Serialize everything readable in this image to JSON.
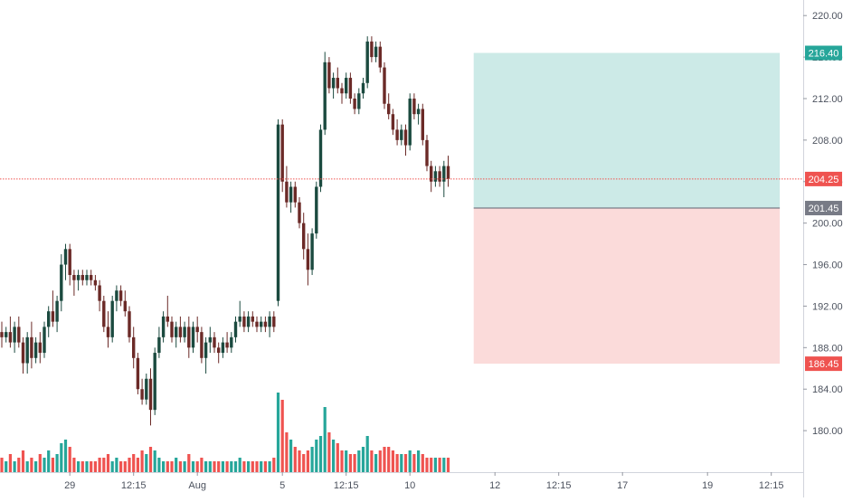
{
  "chart_data": {
    "type": "candlestick",
    "ylim": [
      176.0,
      221.5
    ],
    "y_ticks": [
      180,
      184,
      188,
      192,
      196,
      200,
      204,
      208,
      212,
      216,
      220
    ],
    "y_tick_labels": [
      "180.00",
      "184.00",
      "188.00",
      "192.00",
      "196.00",
      "200.00",
      "204.00",
      "208.00",
      "212.00",
      "216.00",
      "220.00"
    ],
    "x_ticks": [
      {
        "label": "29",
        "index": 16
      },
      {
        "label": "12:15",
        "index": 31
      },
      {
        "label": "Aug",
        "index": 46
      },
      {
        "label": "5",
        "index": 66
      },
      {
        "label": "12:15",
        "index": 81
      },
      {
        "label": "10",
        "index": 96
      },
      {
        "label": "12",
        "index": 116
      },
      {
        "label": "12:15",
        "index": 131
      },
      {
        "label": "17",
        "index": 146
      },
      {
        "label": "19",
        "index": 166
      },
      {
        "label": "12:15",
        "index": 181
      }
    ],
    "grid": false,
    "candles": [
      [
        189.5,
        190.5,
        188.0,
        189.0
      ],
      [
        189.0,
        190.0,
        188.5,
        189.5
      ],
      [
        189.5,
        191.0,
        188.0,
        188.5
      ],
      [
        188.5,
        190.5,
        187.5,
        190.0
      ],
      [
        190.0,
        191.0,
        188.0,
        188.5
      ],
      [
        188.5,
        189.0,
        185.5,
        186.5
      ],
      [
        186.5,
        189.5,
        185.5,
        189.0
      ],
      [
        189.0,
        190.5,
        186.0,
        187.0
      ],
      [
        187.0,
        189.0,
        186.5,
        188.5
      ],
      [
        188.5,
        189.5,
        186.5,
        187.5
      ],
      [
        187.5,
        190.5,
        187.0,
        190.0
      ],
      [
        190.0,
        192.0,
        189.0,
        191.5
      ],
      [
        191.5,
        193.5,
        190.0,
        190.5
      ],
      [
        190.5,
        193.0,
        189.5,
        192.5
      ],
      [
        192.5,
        197.0,
        191.5,
        196.0
      ],
      [
        196.0,
        198.0,
        194.5,
        197.5
      ],
      [
        197.5,
        198.0,
        194.0,
        195.0
      ],
      [
        195.0,
        195.5,
        193.0,
        194.5
      ],
      [
        194.5,
        195.5,
        193.5,
        195.0
      ],
      [
        195.0,
        195.5,
        194.0,
        194.5
      ],
      [
        194.5,
        195.5,
        194.0,
        195.0
      ],
      [
        195.0,
        195.5,
        194.0,
        194.5
      ],
      [
        194.5,
        195.0,
        193.5,
        194.0
      ],
      [
        194.0,
        194.5,
        191.5,
        192.5
      ],
      [
        192.5,
        193.0,
        189.5,
        190.0
      ],
      [
        190.0,
        191.5,
        188.0,
        189.0
      ],
      [
        189.0,
        193.0,
        188.5,
        192.5
      ],
      [
        192.5,
        194.0,
        191.5,
        193.5
      ],
      [
        193.5,
        194.0,
        192.0,
        192.5
      ],
      [
        192.5,
        193.5,
        191.0,
        191.5
      ],
      [
        191.5,
        192.0,
        188.5,
        189.0
      ],
      [
        189.0,
        190.0,
        186.0,
        187.0
      ],
      [
        187.0,
        187.5,
        183.5,
        184.0
      ],
      [
        184.0,
        185.0,
        182.5,
        183.0
      ],
      [
        183.0,
        185.5,
        182.5,
        185.0
      ],
      [
        185.0,
        186.0,
        180.5,
        182.0
      ],
      [
        182.0,
        188.0,
        181.5,
        187.5
      ],
      [
        187.5,
        190.0,
        187.0,
        189.0
      ],
      [
        189.0,
        191.5,
        188.5,
        191.0
      ],
      [
        191.0,
        193.0,
        190.0,
        190.5
      ],
      [
        190.5,
        191.0,
        188.5,
        189.0
      ],
      [
        189.0,
        190.5,
        188.0,
        190.0
      ],
      [
        190.0,
        191.0,
        188.5,
        189.0
      ],
      [
        189.0,
        190.5,
        188.5,
        190.0
      ],
      [
        190.0,
        191.0,
        187.0,
        188.0
      ],
      [
        188.0,
        190.5,
        187.5,
        190.0
      ],
      [
        190.0,
        191.0,
        188.5,
        189.5
      ],
      [
        189.5,
        190.0,
        186.5,
        187.0
      ],
      [
        187.0,
        189.0,
        185.5,
        188.5
      ],
      [
        188.5,
        190.0,
        187.5,
        189.0
      ],
      [
        189.0,
        189.5,
        187.5,
        188.0
      ],
      [
        188.0,
        188.5,
        186.5,
        187.5
      ],
      [
        187.5,
        189.0,
        187.0,
        188.5
      ],
      [
        188.5,
        189.5,
        187.5,
        188.0
      ],
      [
        188.0,
        189.5,
        187.5,
        189.0
      ],
      [
        189.0,
        191.0,
        188.5,
        190.5
      ],
      [
        190.5,
        192.5,
        190.0,
        191.0
      ],
      [
        191.0,
        191.5,
        189.5,
        190.0
      ],
      [
        190.0,
        191.5,
        189.5,
        191.0
      ],
      [
        191.0,
        191.5,
        190.0,
        190.5
      ],
      [
        190.5,
        191.0,
        189.5,
        190.0
      ],
      [
        190.0,
        191.0,
        189.5,
        190.5
      ],
      [
        190.5,
        191.0,
        189.5,
        190.0
      ],
      [
        190.0,
        191.5,
        189.0,
        191.0
      ],
      [
        191.0,
        191.5,
        189.5,
        190.0
      ],
      [
        192.5,
        210.0,
        192.0,
        209.5
      ],
      [
        209.5,
        210.0,
        203.0,
        204.0
      ],
      [
        204.0,
        205.5,
        201.5,
        202.0
      ],
      [
        202.0,
        204.0,
        201.0,
        203.5
      ],
      [
        203.5,
        204.0,
        201.5,
        202.0
      ],
      [
        202.0,
        202.5,
        199.5,
        200.0
      ],
      [
        200.0,
        201.0,
        196.5,
        197.5
      ],
      [
        197.5,
        199.0,
        194.0,
        195.5
      ],
      [
        195.5,
        199.5,
        195.0,
        199.0
      ],
      [
        199.0,
        204.0,
        198.5,
        203.5
      ],
      [
        203.5,
        209.5,
        203.0,
        209.0
      ],
      [
        209.0,
        216.5,
        208.5,
        215.5
      ],
      [
        215.5,
        216.0,
        212.5,
        213.0
      ],
      [
        213.0,
        214.5,
        212.0,
        214.0
      ],
      [
        214.0,
        215.0,
        212.5,
        213.0
      ],
      [
        213.0,
        213.5,
        211.5,
        212.5
      ],
      [
        212.5,
        214.5,
        212.0,
        214.0
      ],
      [
        214.0,
        214.5,
        211.5,
        212.0
      ],
      [
        212.0,
        212.5,
        210.5,
        211.0
      ],
      [
        211.0,
        213.0,
        210.5,
        212.5
      ],
      [
        212.5,
        214.0,
        212.0,
        213.5
      ],
      [
        213.5,
        218.0,
        213.0,
        217.5
      ],
      [
        217.5,
        218.0,
        215.5,
        216.0
      ],
      [
        216.0,
        217.5,
        215.5,
        217.0
      ],
      [
        217.0,
        217.5,
        214.5,
        215.0
      ],
      [
        215.0,
        215.5,
        211.0,
        211.5
      ],
      [
        211.5,
        212.5,
        210.0,
        210.5
      ],
      [
        210.5,
        211.0,
        208.5,
        209.0
      ],
      [
        209.0,
        210.0,
        207.5,
        208.0
      ],
      [
        208.0,
        209.5,
        207.5,
        209.0
      ],
      [
        209.0,
        209.5,
        206.5,
        207.5
      ],
      [
        207.5,
        212.5,
        207.0,
        212.0
      ],
      [
        212.0,
        212.5,
        210.0,
        210.5
      ],
      [
        210.5,
        211.5,
        209.5,
        211.0
      ],
      [
        211.0,
        211.5,
        207.5,
        208.0
      ],
      [
        208.0,
        208.5,
        205.0,
        205.5
      ],
      [
        205.5,
        206.0,
        203.0,
        204.0
      ],
      [
        204.0,
        205.5,
        203.5,
        205.0
      ],
      [
        205.0,
        205.5,
        203.5,
        204.0
      ],
      [
        204.0,
        206.0,
        202.5,
        205.5
      ],
      [
        205.5,
        206.5,
        203.5,
        204.25
      ]
    ],
    "volumes": [
      4,
      3,
      5,
      3,
      4,
      6,
      3,
      4,
      3,
      5,
      4,
      6,
      4,
      5,
      8,
      9,
      7,
      4,
      3,
      3,
      3,
      3,
      3,
      4,
      4,
      5,
      3,
      4,
      3,
      3,
      4,
      5,
      4,
      6,
      5,
      7,
      6,
      4,
      3,
      3,
      3,
      4,
      3,
      3,
      5,
      3,
      3,
      4,
      3,
      3,
      3,
      3,
      3,
      3,
      3,
      3,
      4,
      3,
      3,
      3,
      3,
      3,
      3,
      3,
      4,
      22,
      20,
      11,
      9,
      7,
      6,
      5,
      6,
      7,
      9,
      10,
      18,
      11,
      9,
      8,
      6,
      6,
      5,
      5,
      6,
      7,
      10,
      6,
      5,
      6,
      7,
      7,
      6,
      5,
      5,
      5,
      6,
      5,
      6,
      5,
      4,
      4,
      4,
      4,
      4,
      4
    ],
    "last_price": {
      "label": "204.25",
      "value": 204.25,
      "color": "#ef5350"
    },
    "position": {
      "entry": {
        "label": "201.45",
        "value": 201.45
      },
      "target": {
        "label": "216.40",
        "value": 216.4
      },
      "stop": {
        "label": "186.45",
        "value": 186.45
      },
      "start_index": 111,
      "end_index": 183,
      "profit_fill": "#cceae7",
      "loss_fill": "#fbdbda"
    },
    "colors": {
      "up": "#26a69a",
      "up_dark": "#0f5f4f",
      "down": "#ef5350",
      "down_dark": "#5d1f1c",
      "candle_body_up": "#1b4a3f",
      "candle_body_down": "#6b2a27",
      "axis_text": "#4c525e",
      "target_tag": "#26a69a",
      "stop_tag": "#ef5350",
      "entry_tag": "#787b86"
    }
  }
}
